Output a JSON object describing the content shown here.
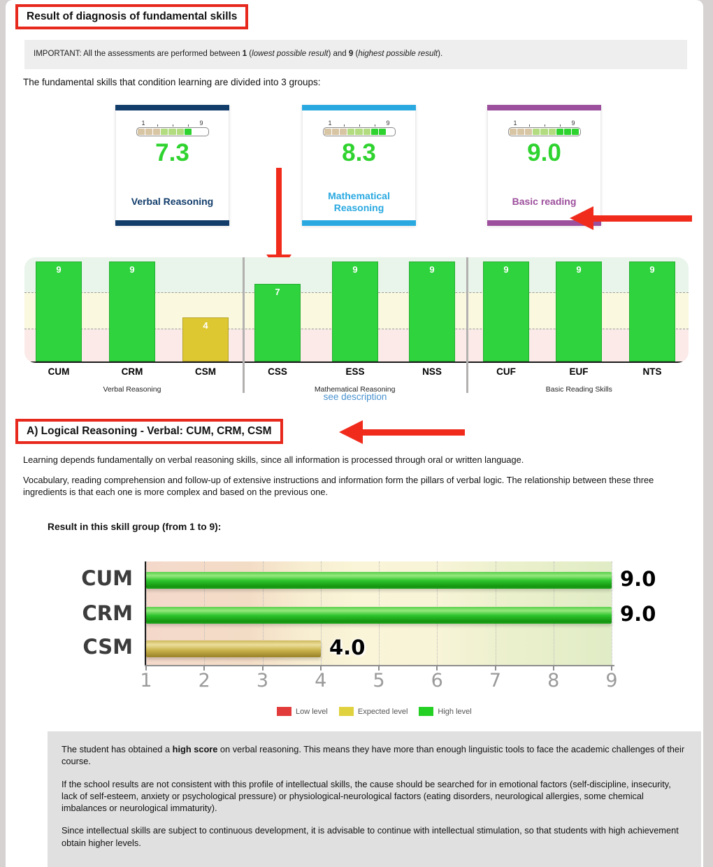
{
  "header": {
    "title": "Result of diagnosis of fundamental skills"
  },
  "banner": {
    "part_a": "IMPORTANT: All the assessments are performed between ",
    "bold_min": "1",
    "part_b": " (",
    "italic_min": "lowest possible result",
    "part_c": ") and ",
    "bold_max": "9",
    "part_d": " (",
    "italic_max": "highest possible result",
    "part_e": ")."
  },
  "intro": "The fundamental skills that condition learning are divided into 3 groups:",
  "gauge": {
    "min": "1",
    "max": "9"
  },
  "cards": [
    {
      "label": "Verbal Reasoning",
      "score": "7.3",
      "value": 7.3,
      "color": "#123d6b"
    },
    {
      "label": "Mathematical Reasoning",
      "score": "8.3",
      "value": 8.3,
      "color": "#2aa9e1"
    },
    {
      "label": "Basic reading",
      "score": "9.0",
      "value": 9.0,
      "color": "#9c4f9c"
    }
  ],
  "see_description": "see description",
  "section_a": {
    "title": "A) Logical Reasoning - Verbal: CUM, CRM, CSM"
  },
  "paragraphs": {
    "p1": "Learning depends fundamentally on verbal reasoning skills, since all information is processed through oral or written language.",
    "p2": "Vocabulary, reading comprehension and follow-up of extensive instructions and information form the pillars of verbal logic. The relationship between these three ingredients is that each one is more complex and based on the previous one."
  },
  "skill_heading": "Result in this skill group (from 1 to 9):",
  "chart_data": [
    {
      "type": "bar",
      "title": "Fundamental skills overview",
      "categories": [
        "CUM",
        "CRM",
        "CSM",
        "CSS",
        "ESS",
        "NSS",
        "CUF",
        "EUF",
        "NTS"
      ],
      "values": [
        9,
        9,
        4,
        7,
        9,
        9,
        9,
        9,
        9
      ],
      "bar_levels": [
        "high",
        "high",
        "expected",
        "high",
        "high",
        "high",
        "high",
        "high",
        "high"
      ],
      "bar_colors": {
        "high": "#2fd33d",
        "expected": "#ddc832"
      },
      "ylim": [
        0,
        9.4
      ],
      "bands": [
        {
          "range": [
            0,
            3
          ],
          "color": "#fbeae8",
          "label": "low"
        },
        {
          "range": [
            3,
            6.4
          ],
          "color": "#faf8df",
          "label": "expected"
        },
        {
          "range": [
            6.4,
            9.4
          ],
          "color": "#e9f4eb",
          "label": "high"
        }
      ],
      "groups": [
        {
          "label": "Verbal Reasoning",
          "members": [
            0,
            1,
            2
          ]
        },
        {
          "label": "Mathematical Reasoning",
          "members": [
            3,
            4,
            5
          ]
        },
        {
          "label": "Basic Reading Skills",
          "members": [
            6,
            7,
            8
          ]
        }
      ],
      "grid": "band boundaries dashed",
      "legend_position": "none"
    },
    {
      "type": "bar",
      "orientation": "horizontal",
      "categories": [
        "CUM",
        "CRM",
        "CSM"
      ],
      "values": [
        9.0,
        9.0,
        4.0
      ],
      "value_labels": [
        "9.0",
        "9.0",
        "4.0"
      ],
      "bar_levels": [
        "high",
        "high",
        "expected"
      ],
      "xlim": [
        1,
        9
      ],
      "xticks": [
        "1",
        "2",
        "3",
        "4",
        "5",
        "6",
        "7",
        "8",
        "9"
      ],
      "grid": "vertical dotted",
      "legend_position": "bottom",
      "legend": [
        {
          "label": "Low level",
          "color": "#e23b3b"
        },
        {
          "label": "Expected level",
          "color": "#e0d23e"
        },
        {
          "label": "High level",
          "color": "#25d025"
        }
      ]
    }
  ],
  "graybox": {
    "p1_a": "The student has obtained a ",
    "p1_bold": "high score",
    "p1_b": " on verbal reasoning. This means they have more than enough linguistic tools to face the academic challenges of their course.",
    "p2": "If the school results are not consistent with this profile of intellectual skills, the cause should be searched for in emotional factors (self-discipline, insecurity, lack of self-esteem, anxiety or psychological pressure) or physiological-neurological factors (eating disorders, neurological allergies, some chemical imbalances or neurological immaturity).",
    "p3": "Since intellectual skills are subject to continuous development, it is advisable to continue with intellectual stimulation, so that students with high achievement obtain higher levels."
  }
}
